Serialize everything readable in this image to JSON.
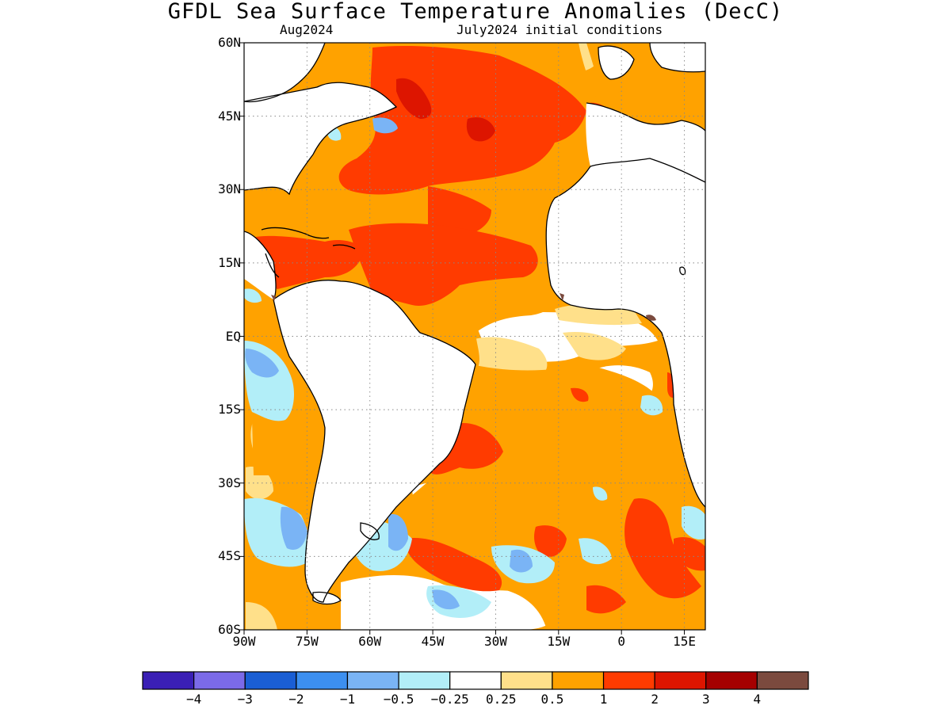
{
  "title": "GFDL Sea Surface Temperature Anomalies (DecC)",
  "subtitle_left": "Aug2024",
  "subtitle_right": "July2024 initial conditions",
  "map": {
    "lat_labels": [
      "60N",
      "45N",
      "30N",
      "15N",
      "EQ",
      "15S",
      "30S",
      "45S",
      "60S"
    ],
    "lon_labels": [
      "90W",
      "75W",
      "60W",
      "45W",
      "30W",
      "15W",
      "0",
      "15E"
    ],
    "grid": "dotted",
    "coastlines": "black",
    "land_fill": "#ffffff"
  },
  "colorbar": {
    "colors": [
      "#3a1fb5",
      "#7b6ae8",
      "#1a5ed4",
      "#3c8ff0",
      "#7ab4f5",
      "#b2eef8",
      "#ffffff",
      "#ffe08a",
      "#ffa200",
      "#ff3b00",
      "#dd1500",
      "#a50000",
      "#7b4a3e"
    ],
    "labels": [
      "−4",
      "−3",
      "−2",
      "−1",
      "−0.5",
      "−0.25",
      "0.25",
      "0.5",
      "1",
      "2",
      "3",
      "4"
    ]
  }
}
